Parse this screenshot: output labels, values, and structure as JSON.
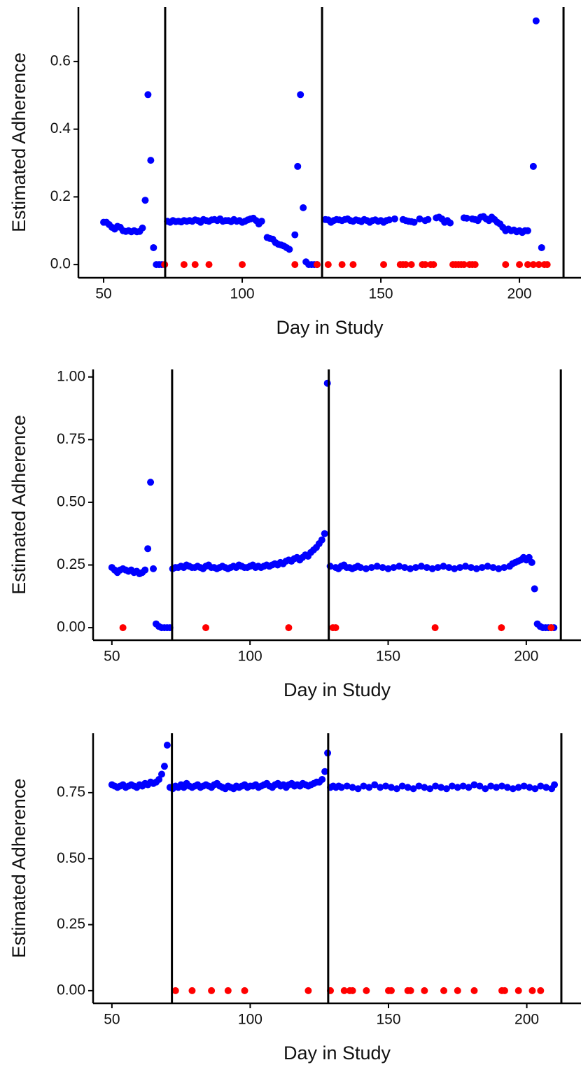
{
  "chart_data": [
    {
      "type": "scatter",
      "xlabel": "Day in Study",
      "ylabel": "Estimated Adherence",
      "xlim": [
        40.9,
        222.2
      ],
      "ylim": [
        -0.039,
        0.761
      ],
      "xticks": [
        50,
        100,
        150,
        200
      ],
      "yticks": [
        {
          "value": 0,
          "label": "0.0"
        },
        0.2,
        0.4,
        0.6
      ],
      "vlines": [
        72.2,
        128.8,
        215.9
      ],
      "series": [
        {
          "color": "#0000ff",
          "x": [
            50,
            51,
            52,
            53,
            54,
            55,
            56,
            57,
            58,
            59,
            60,
            61,
            62,
            63,
            64,
            65,
            66,
            67,
            68,
            69,
            70,
            71,
            72,
            73,
            74,
            75,
            76,
            77,
            78,
            79,
            80,
            81,
            82,
            83,
            84,
            85,
            86,
            87,
            88,
            89,
            90,
            91,
            92,
            93,
            94,
            95,
            96,
            97,
            98,
            99,
            100,
            101,
            102,
            103,
            104,
            105,
            106,
            107,
            109,
            110,
            111,
            112,
            113,
            114,
            115,
            116,
            117,
            119,
            120,
            121,
            122,
            123,
            124,
            125,
            126,
            127,
            130,
            131,
            132,
            133,
            134,
            135,
            136,
            137,
            138,
            139,
            140,
            141,
            142,
            143,
            144,
            145,
            146,
            147,
            148,
            149,
            150,
            151,
            152,
            153,
            155,
            158,
            159,
            160,
            161,
            162,
            164,
            166,
            167,
            170,
            171,
            172,
            173,
            174,
            175,
            180,
            181,
            183,
            184,
            185,
            186,
            187,
            188,
            189,
            190,
            191,
            192,
            193,
            194,
            195,
            196,
            197,
            198,
            199,
            200,
            201,
            202,
            203,
            205,
            206,
            208
          ],
          "values": [
            0.125,
            0.125,
            0.118,
            0.11,
            0.105,
            0.113,
            0.11,
            0.1,
            0.098,
            0.1,
            0.097,
            0.1,
            0.097,
            0.098,
            0.108,
            0.19,
            0.502,
            0.308,
            0.05,
            0,
            0,
            0,
            0,
            0.128,
            0.125,
            0.13,
            0.127,
            0.128,
            0.126,
            0.13,
            0.128,
            0.13,
            0.128,
            0.132,
            0.13,
            0.125,
            0.133,
            0.13,
            0.128,
            0.132,
            0.133,
            0.13,
            0.135,
            0.128,
            0.13,
            0.13,
            0.127,
            0.133,
            0.128,
            0.13,
            0.125,
            0.128,
            0.132,
            0.135,
            0.137,
            0.13,
            0.12,
            0.128,
            0.08,
            0.077,
            0.075,
            0.065,
            0.06,
            0.058,
            0.055,
            0.05,
            0.045,
            0.088,
            0.29,
            0.502,
            0.168,
            0.008,
            0,
            0,
            0,
            0,
            0.133,
            0.132,
            0.125,
            0.13,
            0.133,
            0.132,
            0.13,
            0.133,
            0.135,
            0.13,
            0.128,
            0.132,
            0.13,
            0.127,
            0.133,
            0.13,
            0.125,
            0.13,
            0.132,
            0.128,
            0.13,
            0.125,
            0.13,
            0.132,
            0.135,
            0.133,
            0.13,
            0.128,
            0.127,
            0.125,
            0.135,
            0.13,
            0.133,
            0.138,
            0.14,
            0.135,
            0.125,
            0.13,
            0.123,
            0.138,
            0.137,
            0.135,
            0.133,
            0.13,
            0.14,
            0.142,
            0.135,
            0.13,
            0.14,
            0.133,
            0.125,
            0.12,
            0.11,
            0.1,
            0.105,
            0.1,
            0.102,
            0.097,
            0.1,
            0.095,
            0.1,
            0.1,
            0.29,
            0.72,
            0.05
          ]
        },
        {
          "color": "#ff0000",
          "x": [
            72,
            79,
            83,
            88,
            100,
            119,
            127,
            131,
            136,
            140,
            151,
            157,
            158,
            159,
            161,
            165,
            166,
            168,
            169,
            176,
            177,
            178,
            179,
            180,
            182,
            183,
            184,
            195,
            200,
            203,
            205,
            207,
            209,
            210
          ],
          "values": [
            0,
            0,
            0,
            0,
            0,
            0,
            0,
            0,
            0,
            0,
            0,
            0,
            0,
            0,
            0,
            0,
            0,
            0,
            0,
            0,
            0,
            0,
            0,
            0,
            0,
            0,
            0,
            0,
            0,
            0,
            0,
            0,
            0,
            0
          ]
        }
      ]
    },
    {
      "type": "scatter",
      "xlabel": "Day in Study",
      "ylabel": "Estimated Adherence",
      "xlim": [
        43.2,
        219.8
      ],
      "ylim": [
        -0.05,
        1.03
      ],
      "xticks": [
        50,
        100,
        150,
        200
      ],
      "yticks": [
        {
          "value": 0,
          "label": "0.00"
        },
        0.25,
        {
          "value": 0.5,
          "label": "0.50"
        },
        0.75,
        {
          "value": 1,
          "label": "1.00"
        }
      ],
      "vlines": [
        71.8,
        128.5,
        212.5
      ],
      "series": [
        {
          "color": "#0000ff",
          "x": [
            50,
            51,
            52,
            53,
            54,
            55,
            56,
            57,
            58,
            59,
            60,
            61,
            62,
            63,
            64,
            65,
            66,
            67,
            68,
            69,
            70,
            71,
            72,
            73,
            74,
            75,
            76,
            77,
            78,
            79,
            80,
            81,
            82,
            83,
            84,
            85,
            86,
            87,
            88,
            89,
            90,
            91,
            92,
            93,
            94,
            95,
            96,
            97,
            98,
            99,
            100,
            101,
            102,
            103,
            104,
            105,
            106,
            107,
            108,
            109,
            110,
            111,
            112,
            113,
            114,
            115,
            116,
            117,
            118,
            119,
            120,
            121,
            122,
            123,
            124,
            125,
            126,
            127,
            128,
            129,
            131,
            132,
            133,
            134,
            135,
            136,
            137,
            138,
            139,
            140,
            142,
            144,
            146,
            148,
            150,
            152,
            154,
            156,
            158,
            160,
            162,
            164,
            166,
            168,
            170,
            172,
            174,
            176,
            178,
            180,
            182,
            184,
            186,
            188,
            190,
            192,
            194,
            195,
            196,
            197,
            198,
            199,
            200,
            201,
            202,
            203,
            204,
            205,
            206,
            207,
            208,
            209,
            210
          ],
          "values": [
            0.24,
            0.23,
            0.22,
            0.23,
            0.235,
            0.23,
            0.225,
            0.23,
            0.22,
            0.225,
            0.215,
            0.22,
            0.23,
            0.315,
            0.58,
            0.235,
            0.015,
            0.005,
            0,
            0,
            0,
            0,
            0.235,
            0.24,
            0.24,
            0.245,
            0.24,
            0.25,
            0.245,
            0.24,
            0.24,
            0.245,
            0.24,
            0.235,
            0.245,
            0.25,
            0.24,
            0.24,
            0.235,
            0.24,
            0.245,
            0.24,
            0.235,
            0.24,
            0.245,
            0.24,
            0.25,
            0.245,
            0.24,
            0.24,
            0.245,
            0.25,
            0.24,
            0.245,
            0.24,
            0.245,
            0.25,
            0.245,
            0.25,
            0.255,
            0.25,
            0.26,
            0.255,
            0.265,
            0.27,
            0.265,
            0.275,
            0.28,
            0.27,
            0.28,
            0.29,
            0.285,
            0.3,
            0.31,
            0.32,
            0.335,
            0.35,
            0.375,
            0.975,
            0.245,
            0.24,
            0.235,
            0.245,
            0.25,
            0.24,
            0.24,
            0.235,
            0.24,
            0.245,
            0.24,
            0.235,
            0.24,
            0.245,
            0.24,
            0.235,
            0.24,
            0.245,
            0.24,
            0.235,
            0.24,
            0.245,
            0.24,
            0.235,
            0.24,
            0.245,
            0.24,
            0.235,
            0.24,
            0.245,
            0.24,
            0.235,
            0.24,
            0.245,
            0.24,
            0.235,
            0.24,
            0.245,
            0.255,
            0.26,
            0.265,
            0.27,
            0.28,
            0.27,
            0.28,
            0.26,
            0.155,
            0.015,
            0.005,
            0,
            0,
            0,
            0,
            0
          ]
        },
        {
          "color": "#ff0000",
          "x": [
            54,
            84,
            114,
            130,
            131,
            167,
            191,
            209
          ],
          "values": [
            0,
            0,
            0,
            0,
            0,
            0,
            0,
            0
          ]
        }
      ]
    },
    {
      "type": "scatter",
      "xlabel": "Day in Study",
      "ylabel": "Estimated Adherence",
      "xlim": [
        43.2,
        219.6
      ],
      "ylim": [
        -0.048,
        0.975
      ],
      "xticks": [
        50,
        100,
        150,
        200
      ],
      "yticks": [
        {
          "value": 0,
          "label": "0.00"
        },
        0.25,
        {
          "value": 0.5,
          "label": "0.50"
        },
        0.75
      ],
      "vlines": [
        71.7,
        128.2,
        212.5
      ],
      "series": [
        {
          "color": "#0000ff",
          "x": [
            50,
            51,
            52,
            53,
            54,
            55,
            56,
            57,
            58,
            59,
            60,
            61,
            62,
            63,
            64,
            65,
            66,
            67,
            68,
            69,
            70,
            71,
            72,
            73,
            74,
            75,
            76,
            77,
            78,
            79,
            80,
            81,
            82,
            83,
            84,
            85,
            86,
            87,
            88,
            89,
            90,
            91,
            92,
            93,
            94,
            95,
            96,
            97,
            98,
            99,
            100,
            101,
            102,
            103,
            104,
            105,
            106,
            107,
            108,
            109,
            110,
            111,
            112,
            113,
            114,
            115,
            116,
            117,
            118,
            119,
            120,
            121,
            122,
            123,
            124,
            125,
            126,
            127,
            128,
            129,
            130,
            131,
            132,
            133,
            135,
            137,
            139,
            141,
            143,
            145,
            147,
            149,
            151,
            153,
            155,
            157,
            159,
            161,
            163,
            165,
            167,
            169,
            171,
            173,
            175,
            177,
            179,
            181,
            183,
            185,
            187,
            189,
            191,
            193,
            195,
            197,
            199,
            201,
            203,
            205,
            207,
            209,
            210
          ],
          "values": [
            0.78,
            0.775,
            0.77,
            0.775,
            0.78,
            0.77,
            0.775,
            0.78,
            0.775,
            0.77,
            0.78,
            0.775,
            0.785,
            0.78,
            0.79,
            0.785,
            0.79,
            0.8,
            0.82,
            0.85,
            0.93,
            0.77,
            0.765,
            0.775,
            0.77,
            0.78,
            0.77,
            0.785,
            0.775,
            0.77,
            0.775,
            0.78,
            0.77,
            0.775,
            0.78,
            0.775,
            0.77,
            0.78,
            0.785,
            0.775,
            0.77,
            0.765,
            0.775,
            0.77,
            0.765,
            0.775,
            0.77,
            0.775,
            0.78,
            0.77,
            0.775,
            0.775,
            0.78,
            0.77,
            0.775,
            0.78,
            0.785,
            0.775,
            0.77,
            0.78,
            0.785,
            0.775,
            0.78,
            0.77,
            0.78,
            0.785,
            0.775,
            0.78,
            0.775,
            0.785,
            0.78,
            0.775,
            0.78,
            0.785,
            0.79,
            0.79,
            0.8,
            0.83,
            0.9,
            0.77,
            0.775,
            0.77,
            0.775,
            0.77,
            0.775,
            0.77,
            0.765,
            0.775,
            0.77,
            0.78,
            0.77,
            0.775,
            0.77,
            0.765,
            0.775,
            0.77,
            0.765,
            0.775,
            0.77,
            0.765,
            0.775,
            0.77,
            0.765,
            0.775,
            0.77,
            0.775,
            0.77,
            0.78,
            0.775,
            0.765,
            0.775,
            0.77,
            0.775,
            0.77,
            0.765,
            0.77,
            0.775,
            0.77,
            0.765,
            0.775,
            0.77,
            0.765,
            0.78
          ]
        },
        {
          "color": "#ff0000",
          "x": [
            73,
            79,
            86,
            92,
            98,
            121,
            129,
            134,
            136,
            137,
            142,
            150,
            151,
            157,
            158,
            163,
            170,
            175,
            181,
            191,
            192,
            197,
            202,
            205
          ],
          "values": [
            0,
            0,
            0,
            0,
            0,
            0,
            0,
            0,
            0,
            0,
            0,
            0,
            0,
            0,
            0,
            0,
            0,
            0,
            0,
            0,
            0,
            0,
            0,
            0
          ]
        }
      ]
    }
  ]
}
